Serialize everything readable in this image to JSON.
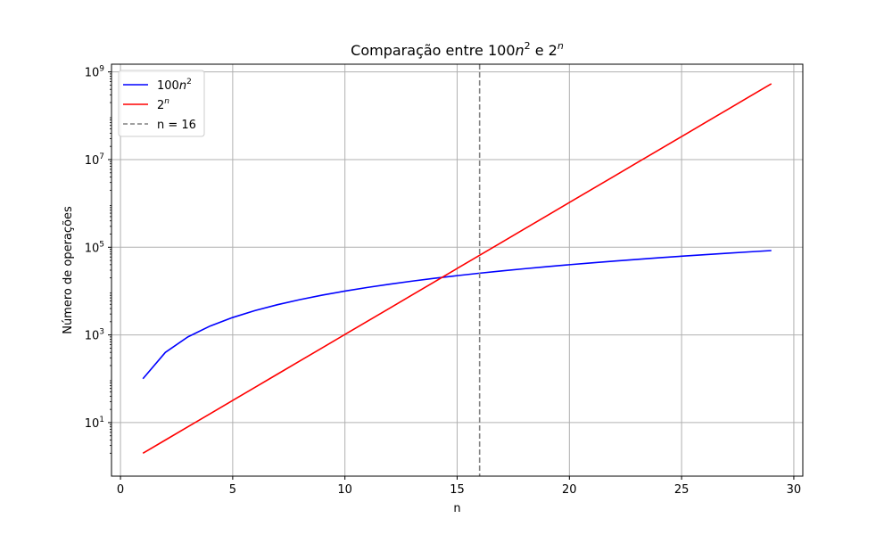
{
  "chart_data": {
    "type": "line",
    "title": "Comparação entre 100n² e 2ⁿ",
    "title_parts": {
      "prefix": "Comparação entre 100",
      "mid": " e 2",
      "var_n": "n",
      "sup_2": "2",
      "sup_n": "n"
    },
    "xlabel": "n",
    "ylabel": "Número de operações",
    "xlim": [
      -0.4,
      30.4
    ],
    "ylim": [
      0.6,
      1500000000.0
    ],
    "yscale": "log",
    "grid": true,
    "legend_position": "top-left",
    "x": [
      1,
      2,
      3,
      4,
      5,
      6,
      7,
      8,
      9,
      10,
      11,
      12,
      13,
      14,
      15,
      16,
      17,
      18,
      19,
      20,
      21,
      22,
      23,
      24,
      25,
      26,
      27,
      28,
      29
    ],
    "series": [
      {
        "name": "100n²",
        "legend_parts": {
          "base": "100",
          "var": "n",
          "sup": "2"
        },
        "color": "#0000ff",
        "style": "solid",
        "values": [
          100,
          400,
          900,
          1600,
          2500,
          3600,
          4900,
          6400,
          8100,
          10000,
          12100,
          14400,
          16900,
          19600,
          22500,
          25600,
          28900,
          32400,
          36100,
          40000,
          44100,
          48400,
          52900,
          57600,
          62500,
          67600,
          72900,
          78400,
          84100
        ]
      },
      {
        "name": "2ⁿ",
        "legend_parts": {
          "base": "2",
          "var": "",
          "sup": "n"
        },
        "color": "#ff0000",
        "style": "solid",
        "values": [
          2,
          4,
          8,
          16,
          32,
          64,
          128,
          256,
          512,
          1024,
          2048,
          4096,
          8192,
          16384,
          32768,
          65536,
          131072,
          262144,
          524288,
          1048576,
          2097152,
          4194304,
          8388608,
          16777216,
          33554432,
          67108864,
          134217728,
          268435456,
          536870912
        ]
      }
    ],
    "vline": {
      "x": 16,
      "name": "n = 16",
      "color": "#808080",
      "style": "dashed"
    },
    "x_ticks": [
      {
        "value": 0,
        "label": "0"
      },
      {
        "value": 5,
        "label": "5"
      },
      {
        "value": 10,
        "label": "10"
      },
      {
        "value": 15,
        "label": "15"
      },
      {
        "value": 20,
        "label": "20"
      },
      {
        "value": 25,
        "label": "25"
      },
      {
        "value": 30,
        "label": "30"
      }
    ],
    "y_ticks": [
      {
        "value": 10,
        "base": "10",
        "exp": "1"
      },
      {
        "value": 1000,
        "base": "10",
        "exp": "3"
      },
      {
        "value": 100000,
        "base": "10",
        "exp": "5"
      },
      {
        "value": 10000000,
        "base": "10",
        "exp": "7"
      },
      {
        "value": 1000000000,
        "base": "10",
        "exp": "9"
      }
    ],
    "colors": {
      "grid": "#b0b0b0",
      "axes": "#000000",
      "legend_border": "#cccccc"
    }
  }
}
